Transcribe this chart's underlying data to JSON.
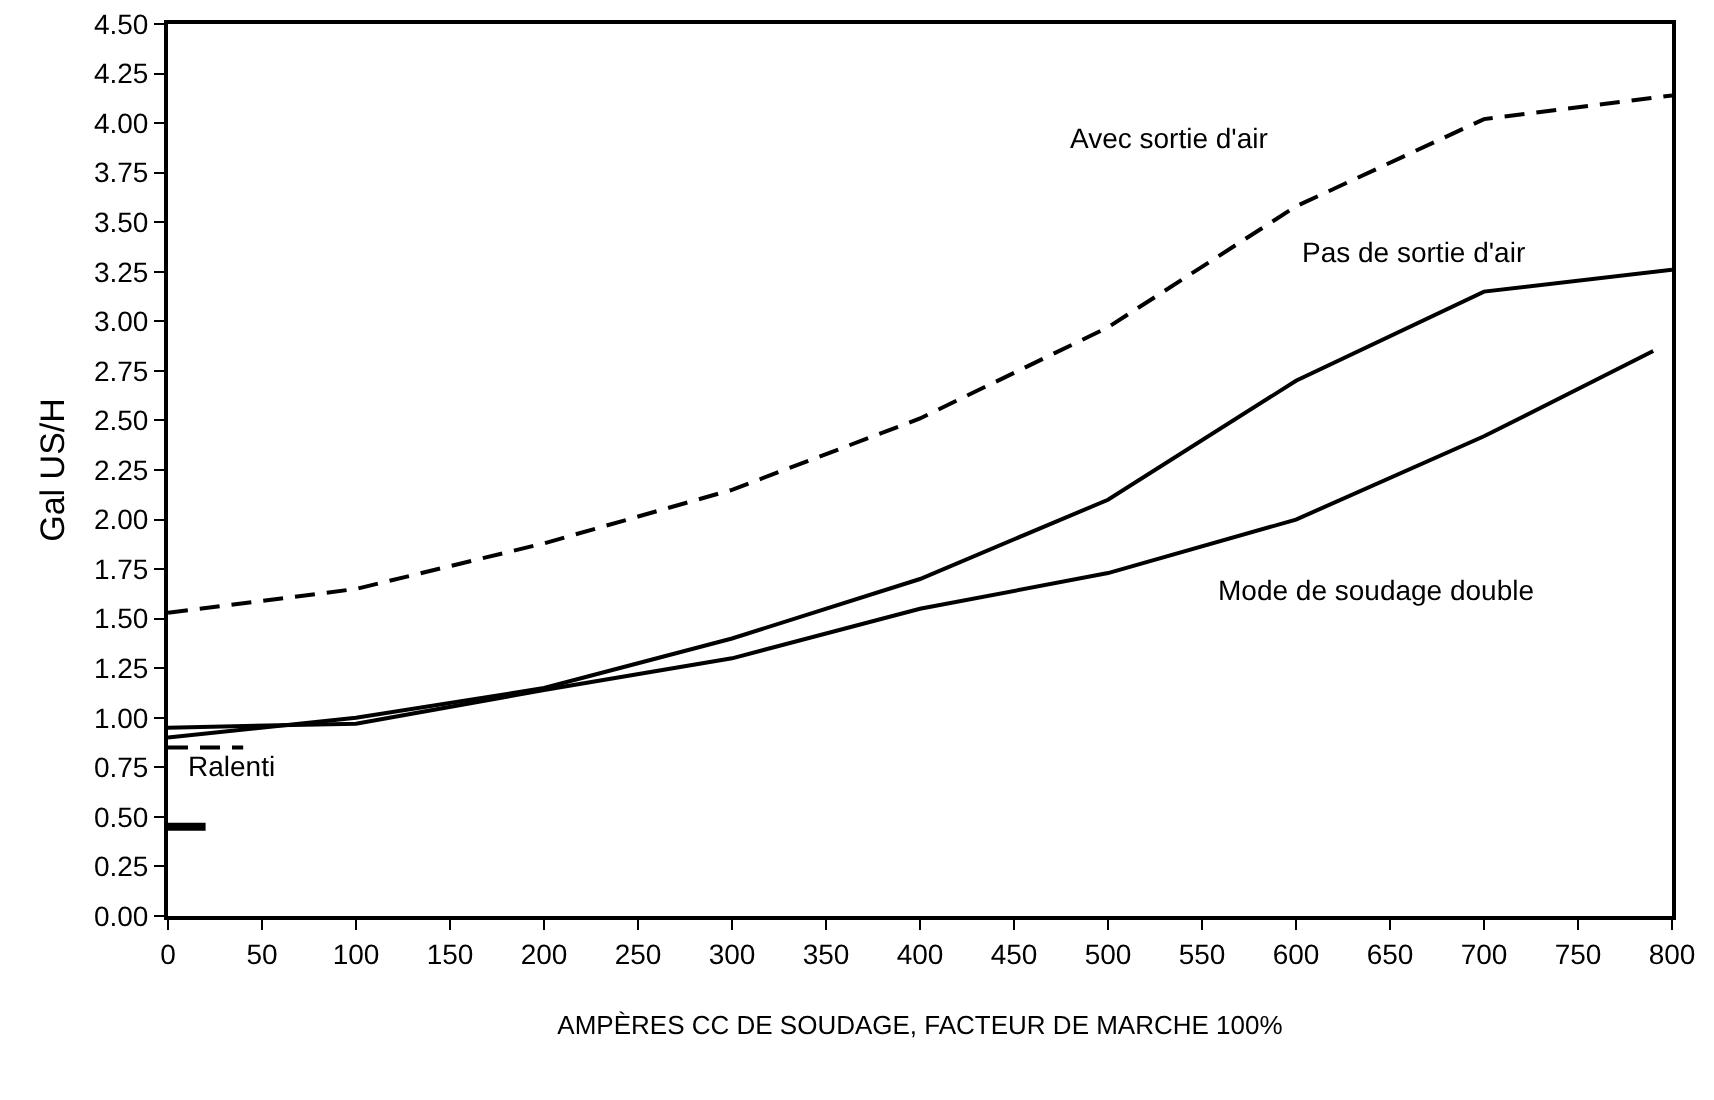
{
  "chart_data": {
    "type": "line",
    "xlabel": "AMPÈRES CC DE SOUDAGE, FACTEUR DE MARCHE 100%",
    "ylabel": "Gal US/H",
    "x": [
      0,
      100,
      200,
      300,
      400,
      500,
      600,
      700,
      800
    ],
    "series": [
      {
        "name": "Avec sortie d'air",
        "color": "#000000",
        "line_style": "dashed",
        "values": [
          1.53,
          1.65,
          1.88,
          2.15,
          2.51,
          2.97,
          3.58,
          4.02,
          4.14
        ]
      },
      {
        "name": "Pas de sortie d'air",
        "color": "#000000",
        "line_style": "solid",
        "values": [
          0.9,
          1.0,
          1.15,
          1.4,
          1.7,
          2.1,
          2.7,
          3.15,
          3.26
        ]
      },
      {
        "name": "Mode de soudage double",
        "color": "#000000",
        "line_style": "solid",
        "x": [
          0,
          100,
          200,
          300,
          400,
          500,
          600,
          700,
          790
        ],
        "values": [
          0.95,
          0.97,
          1.14,
          1.3,
          1.55,
          1.73,
          2.0,
          2.42,
          2.85
        ]
      },
      {
        "color": "#000000",
        "line_style": "dashed",
        "x": [
          0,
          40
        ],
        "values": [
          0.85,
          0.85
        ]
      },
      {
        "color": "#000000",
        "line_style": "solid",
        "x": [
          0,
          20
        ],
        "values": [
          0.45,
          0.45
        ]
      }
    ],
    "annotations": [
      "Ralenti"
    ],
    "xlim": [
      0,
      800
    ],
    "xticks": [
      0,
      50,
      100,
      150,
      200,
      250,
      300,
      350,
      400,
      450,
      500,
      550,
      600,
      650,
      700,
      750,
      800
    ],
    "ylim": [
      0,
      4.5
    ],
    "yticks": [
      {
        "value": 0,
        "label": "0.00"
      },
      {
        "value": 0.25,
        "label": "0.25"
      },
      {
        "value": 0.5,
        "label": "0.50"
      },
      {
        "value": 0.75,
        "label": "0.75"
      },
      {
        "value": 1,
        "label": "1.00"
      },
      {
        "value": 1.25,
        "label": "1.25"
      },
      {
        "value": 1.5,
        "label": "1.50"
      },
      {
        "value": 1.75,
        "label": "1.75"
      },
      {
        "value": 2,
        "label": "2.00"
      },
      {
        "value": 2.25,
        "label": "2.25"
      },
      {
        "value": 2.5,
        "label": "2.50"
      },
      {
        "value": 2.75,
        "label": "2.75"
      },
      {
        "value": 3,
        "label": "3.00"
      },
      {
        "value": 3.25,
        "label": "3.25"
      },
      {
        "value": 3.5,
        "label": "3.50"
      },
      {
        "value": 3.75,
        "label": "3.75"
      },
      {
        "value": 4,
        "label": "4.00"
      },
      {
        "value": 4.25,
        "label": "4.25"
      },
      {
        "value": 4.5,
        "label": "4.50"
      }
    ],
    "grid": false,
    "legend": false,
    "marker": "none"
  }
}
